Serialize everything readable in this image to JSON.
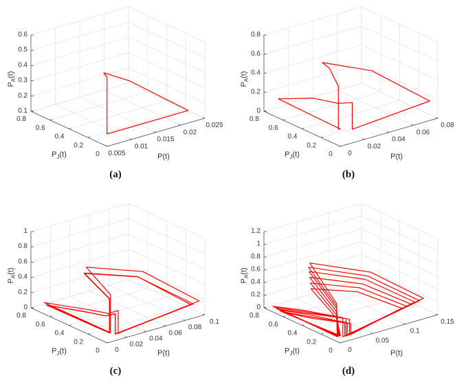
{
  "chart_data": [
    {
      "type": "line3d",
      "caption": "(a)",
      "xlabel": {
        "base": "P",
        "sub": "",
        "suffix": "(t)"
      },
      "ylabel": {
        "base": "P",
        "sub": "J",
        "suffix": "(t)"
      },
      "zlabel": {
        "base": "P",
        "sub": "A",
        "suffix": "(t)"
      },
      "xlim": [
        0.005,
        0.025
      ],
      "ylim": [
        0,
        0.8
      ],
      "zlim": [
        0.1,
        0.6
      ],
      "xticks": [
        "0.005",
        "0.01",
        "0.015",
        "0.02",
        "0.025"
      ],
      "yticks": [
        "0",
        "0.2",
        "0.4",
        "0.6",
        "0.8"
      ],
      "zticks": [
        "0.1",
        "0.2",
        "0.3",
        "0.4",
        "0.5",
        "0.6"
      ],
      "grid": true,
      "color": "#ff0000",
      "series": [
        {
          "points": [
            [
              0.00836,
              0.174,
              0.1
            ],
            [
              0.00836,
              0.174,
              0.47
            ],
            [
              0.0082,
              0.2,
              0.495
            ],
            [
              0.0127,
              0.29,
              0.4
            ],
            [
              0.0174,
              0.405,
              0.3
            ],
            [
              0.025,
              0.175,
              0.1
            ],
            [
              0.00836,
              0.174,
              0.1
            ]
          ]
        }
      ]
    },
    {
      "type": "line3d",
      "caption": "(b)",
      "xlabel": {
        "base": "P",
        "sub": "",
        "suffix": "(t)"
      },
      "ylabel": {
        "base": "P",
        "sub": "J",
        "suffix": "(t)"
      },
      "zlabel": {
        "base": "P",
        "sub": "A",
        "suffix": "(t)"
      },
      "xlim": [
        0,
        0.08
      ],
      "ylim": [
        0,
        0.8
      ],
      "zlim": [
        0,
        0.8
      ],
      "xticks": [
        "0",
        "0.02",
        "0.04",
        "0.06",
        "0.08"
      ],
      "yticks": [
        "0",
        "0.2",
        "0.4",
        "0.6",
        "0.8"
      ],
      "zticks": [
        "0",
        "0.2",
        "0.4",
        "0.6",
        "0.8"
      ],
      "grid": true,
      "color": "#ff0000",
      "series": [
        {
          "points": [
            [
              0.0306,
              0.58,
              0.5
            ],
            [
              0.057,
              0.4,
              0.4
            ],
            [
              0.078,
              0.06,
              0.16
            ],
            [
              0.0247,
              0.19,
              0
            ],
            [
              0.0247,
              0.19,
              0.28
            ],
            [
              0.021,
              0.29,
              0.24
            ],
            [
              0.01,
              0.41,
              0.28
            ],
            [
              0,
              0.65,
              0.2
            ],
            [
              0.019,
              0.24,
              0
            ],
            [
              0.018,
              0.25,
              0
            ],
            [
              0.018,
              0.25,
              0.45
            ],
            [
              0.031,
              0.51,
              0.47
            ],
            [
              0.0306,
              0.58,
              0.5
            ]
          ]
        }
      ]
    },
    {
      "type": "line3d",
      "caption": "(c)",
      "xlabel": {
        "base": "P",
        "sub": "",
        "suffix": "(t)"
      },
      "ylabel": {
        "base": "P",
        "sub": "J",
        "suffix": "(t)"
      },
      "zlabel": {
        "base": "P",
        "sub": "A",
        "suffix": "(t)"
      },
      "xlim": [
        0,
        0.1
      ],
      "ylim": [
        0,
        0.8
      ],
      "zlim": [
        0,
        1
      ],
      "xticks": [
        "0",
        "0.02",
        "0.04",
        "0.06",
        "0.08",
        "0.1"
      ],
      "yticks": [
        "0",
        "0.2",
        "0.4",
        "0.6",
        "0.8"
      ],
      "zticks": [
        "0",
        "0.2",
        "0.4",
        "0.6",
        "0.8",
        "1"
      ],
      "grid": true,
      "color": "#ff0000",
      "series": [
        {
          "points": [
            [
              0.033,
              0.56,
              0.55
            ],
            [
              0.073,
              0.375,
              0.45
            ],
            [
              0.0997,
              0.055,
              0.15
            ],
            [
              0.02,
              0.09,
              0
            ],
            [
              0.02,
              0.09,
              0.3
            ],
            [
              0.015,
              0.14,
              0.25
            ],
            [
              0.011,
              0.3,
              0.22
            ],
            [
              0,
              0.66,
              0.15
            ],
            [
              0.016,
              0.13,
              0
            ],
            [
              0.016,
              0.13,
              0.5
            ],
            [
              0.033,
              0.56,
              0.55
            ]
          ]
        },
        {
          "points": [
            [
              0.031,
              0.56,
              0.48
            ],
            [
              0.068,
              0.38,
              0.4
            ],
            [
              0.095,
              0.07,
              0.12
            ],
            [
              0.017,
              0.09,
              0
            ],
            [
              0.017,
              0.09,
              0.27
            ],
            [
              0.013,
              0.15,
              0.22
            ],
            [
              0.01,
              0.3,
              0.19
            ],
            [
              0,
              0.64,
              0.13
            ],
            [
              0.015,
              0.13,
              0
            ],
            [
              0.015,
              0.13,
              0.45
            ],
            [
              0.031,
              0.56,
              0.48
            ]
          ]
        },
        {
          "points": [
            [
              0.0315,
              0.565,
              0.47
            ],
            [
              0.069,
              0.385,
              0.39
            ],
            [
              0.093,
              0.075,
              0.115
            ],
            [
              0.0175,
              0.095,
              0
            ],
            [
              0.0175,
              0.095,
              0.26
            ],
            [
              0.0135,
              0.155,
              0.215
            ],
            [
              0.0105,
              0.31,
              0.185
            ],
            [
              0.001,
              0.635,
              0.125
            ],
            [
              0.0155,
              0.135,
              0
            ],
            [
              0.0155,
              0.135,
              0.44
            ],
            [
              0.0315,
              0.565,
              0.47
            ]
          ]
        }
      ]
    },
    {
      "type": "line3d",
      "caption": "(d)",
      "xlabel": {
        "base": "P",
        "sub": "",
        "suffix": "(t)"
      },
      "ylabel": {
        "base": "P",
        "sub": "J",
        "suffix": "(t)"
      },
      "zlabel": {
        "base": "P",
        "sub": "A",
        "suffix": "(t)"
      },
      "xlim": [
        0,
        0.15
      ],
      "ylim": [
        0,
        0.8
      ],
      "zlim": [
        0,
        1.2
      ],
      "xticks": [
        "0",
        "0.05",
        "0.1",
        "0.15"
      ],
      "yticks": [
        "0",
        "0.2",
        "0.4",
        "0.6",
        "0.8"
      ],
      "zticks": [
        "0",
        "0.2",
        "0.4",
        "0.6",
        "0.8",
        "1",
        "1.2"
      ],
      "grid": true,
      "color": "#ff0000",
      "series": [
        {
          "points": [
            [
              0.044,
              0.62,
              0.7
            ],
            [
              0.102,
              0.38,
              0.55
            ],
            [
              0.144,
              0.11,
              0.2
            ],
            [
              0.015,
              0.075,
              0
            ],
            [
              0.015,
              0.075,
              0.3
            ],
            [
              0.012,
              0.48,
              0.15
            ],
            [
              0.005,
              0.74,
              0.05
            ],
            [
              0.01,
              0.1,
              0
            ],
            [
              0.012,
              0.12,
              0.5
            ],
            [
              0.044,
              0.62,
              0.7
            ]
          ]
        },
        {
          "points": [
            [
              0.042,
              0.62,
              0.64
            ],
            [
              0.098,
              0.38,
              0.5
            ],
            [
              0.138,
              0.11,
              0.18
            ],
            [
              0.02,
              0.075,
              0
            ],
            [
              0.02,
              0.075,
              0.27
            ],
            [
              0.012,
              0.46,
              0.14
            ],
            [
              0.005,
              0.72,
              0.05
            ],
            [
              0.011,
              0.1,
              0
            ],
            [
              0.012,
              0.12,
              0.46
            ],
            [
              0.042,
              0.62,
              0.64
            ]
          ]
        },
        {
          "points": [
            [
              0.04,
              0.6,
              0.59
            ],
            [
              0.094,
              0.38,
              0.46
            ],
            [
              0.132,
              0.12,
              0.17
            ],
            [
              0.025,
              0.075,
              0
            ],
            [
              0.025,
              0.075,
              0.25
            ],
            [
              0.012,
              0.44,
              0.13
            ],
            [
              0.005,
              0.7,
              0.04
            ],
            [
              0.012,
              0.1,
              0
            ],
            [
              0.012,
              0.12,
              0.42
            ],
            [
              0.04,
              0.6,
              0.59
            ]
          ]
        },
        {
          "points": [
            [
              0.038,
              0.58,
              0.52
            ],
            [
              0.09,
              0.38,
              0.4
            ],
            [
              0.127,
              0.12,
              0.15
            ],
            [
              0.018,
              0.075,
              0
            ],
            [
              0.018,
              0.075,
              0.22
            ],
            [
              0.012,
              0.42,
              0.12
            ],
            [
              0.005,
              0.68,
              0.04
            ],
            [
              0.013,
              0.1,
              0
            ],
            [
              0.012,
              0.12,
              0.37
            ],
            [
              0.038,
              0.58,
              0.52
            ]
          ]
        },
        {
          "points": [
            [
              0.036,
              0.56,
              0.45
            ],
            [
              0.086,
              0.38,
              0.35
            ],
            [
              0.121,
              0.13,
              0.13
            ],
            [
              0.022,
              0.075,
              0
            ],
            [
              0.022,
              0.075,
              0.2
            ],
            [
              0.012,
              0.4,
              0.1
            ],
            [
              0.005,
              0.66,
              0.03
            ],
            [
              0.014,
              0.1,
              0
            ],
            [
              0.012,
              0.12,
              0.32
            ],
            [
              0.036,
              0.56,
              0.45
            ]
          ]
        },
        {
          "points": [
            [
              0.034,
              0.54,
              0.38
            ],
            [
              0.082,
              0.38,
              0.3
            ],
            [
              0.115,
              0.14,
              0.11
            ],
            [
              0.027,
              0.075,
              0
            ],
            [
              0.027,
              0.075,
              0.17
            ],
            [
              0.012,
              0.38,
              0.09
            ],
            [
              0.005,
              0.64,
              0.03
            ],
            [
              0.015,
              0.1,
              0
            ],
            [
              0.012,
              0.12,
              0.27
            ],
            [
              0.034,
              0.54,
              0.38
            ]
          ]
        }
      ]
    }
  ]
}
